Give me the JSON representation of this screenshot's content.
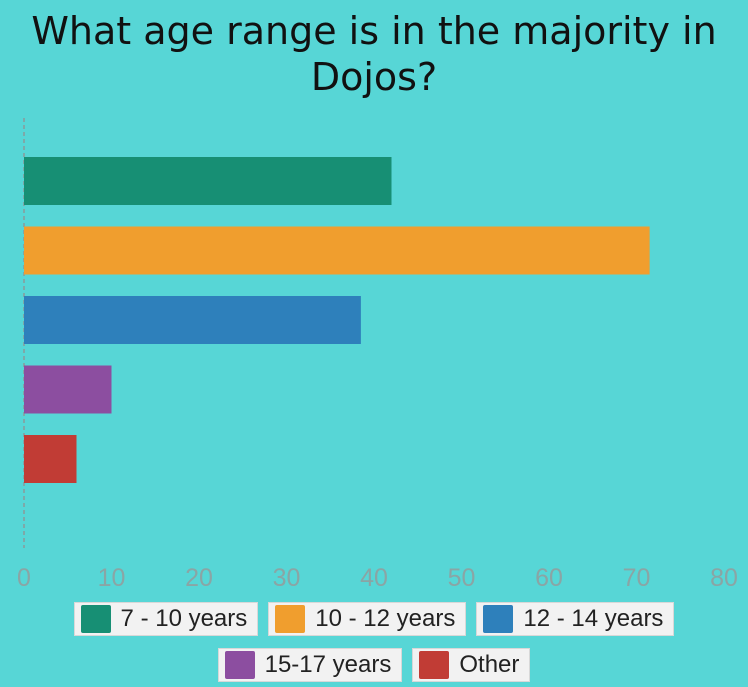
{
  "chart_data": {
    "type": "bar",
    "orientation": "horizontal",
    "title": "What age range is in the majority in Dojos?",
    "categories": [
      "7 - 10 years",
      "10 - 12 years",
      "12 - 14 years",
      "15-17 years",
      "Other"
    ],
    "values": [
      42,
      71.5,
      38.5,
      10,
      6
    ],
    "colors": [
      "#178f74",
      "#f09e2e",
      "#2e80bb",
      "#8c4ea0",
      "#c13c35"
    ],
    "xlim": [
      0,
      80
    ],
    "xticks": [
      "0",
      "10",
      "20",
      "30",
      "40",
      "50",
      "60",
      "70",
      "80"
    ],
    "grid": false,
    "legend_position": "bottom"
  }
}
